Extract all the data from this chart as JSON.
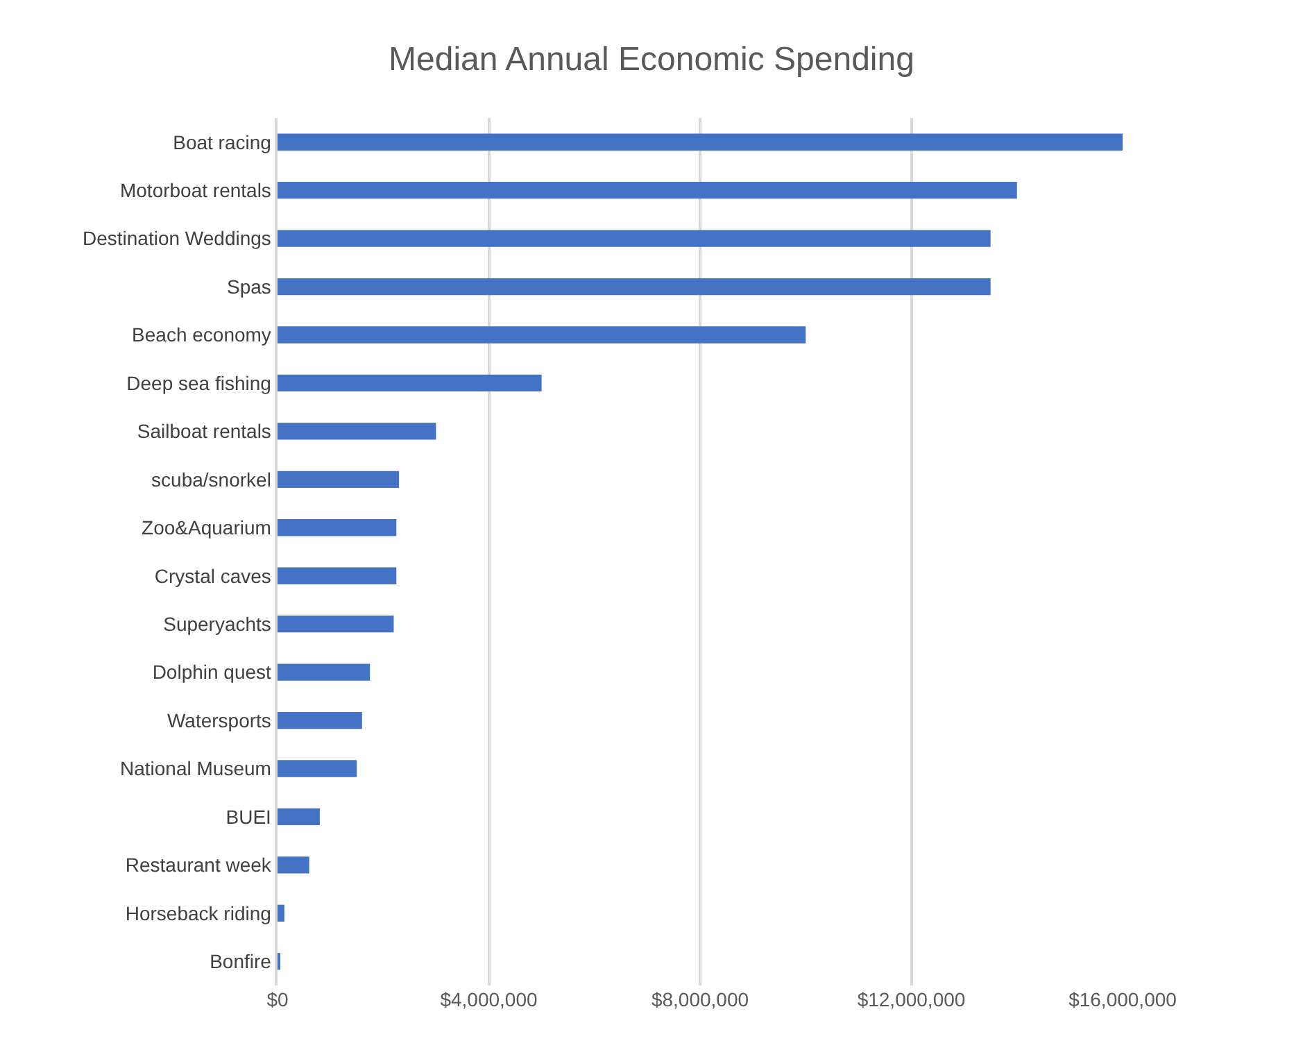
{
  "chart_data": {
    "type": "bar",
    "orientation": "horizontal",
    "title": "Median Annual Economic Spending",
    "categories": [
      "Boat racing",
      "Motorboat rentals",
      "Destination Weddings",
      "Spas",
      "Beach economy",
      "Deep sea fishing",
      "Sailboat rentals",
      "scuba/snorkel",
      "Zoo&Aquarium",
      "Crystal caves",
      "Superyachts",
      "Dolphin quest",
      "Watersports",
      "National Museum",
      "BUEI",
      "Restaurant week",
      "Horseback riding",
      "Bonfire"
    ],
    "values": [
      16000000,
      14000000,
      13500000,
      13500000,
      10000000,
      5000000,
      3000000,
      2300000,
      2250000,
      2250000,
      2200000,
      1750000,
      1600000,
      1500000,
      800000,
      600000,
      130000,
      50000
    ],
    "color": "#4472c4",
    "xlim": [
      0,
      16000000
    ],
    "xticks": [
      {
        "value": 0,
        "label": "$0"
      },
      {
        "value": 4000000,
        "label": "$4,000,000"
      },
      {
        "value": 8000000,
        "label": "$8,000,000"
      },
      {
        "value": 12000000,
        "label": "$12,000,000"
      },
      {
        "value": 16000000,
        "label": "$16,000,000"
      }
    ],
    "grid": "x"
  }
}
